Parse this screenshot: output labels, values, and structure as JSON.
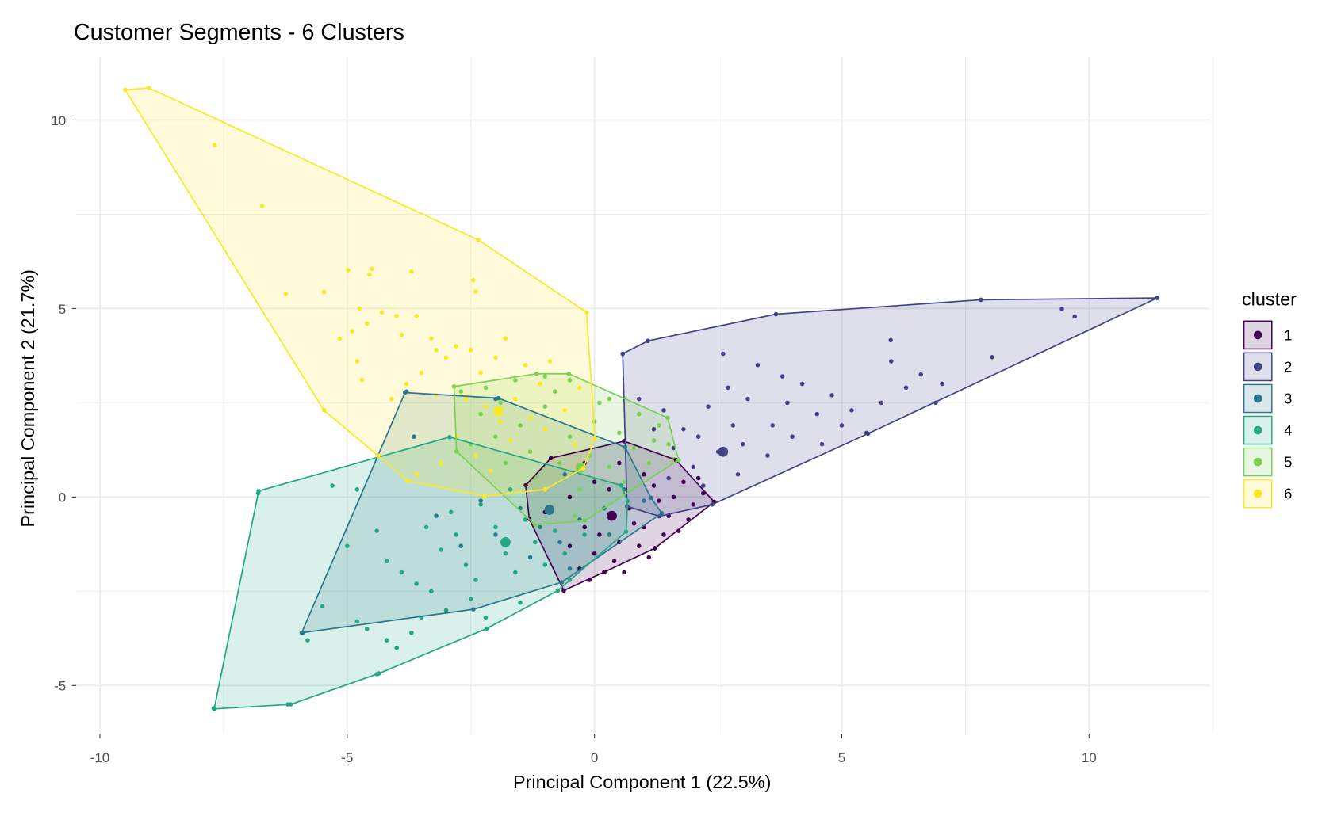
{
  "chart_data": {
    "type": "scatter",
    "title": "Customer Segments - 6 Clusters",
    "xlabel": "Principal Component 1 (22.5%)",
    "ylabel": "Principal Component 2 (21.7%)",
    "xlim": [
      -10.48,
      12.44
    ],
    "ylim": [
      -6.29,
      11.66
    ],
    "x_ticks": [
      -10,
      -5,
      0,
      5,
      10
    ],
    "y_ticks": [
      -5,
      0,
      5,
      10
    ],
    "x_tick_labels": [
      "-10",
      "-5",
      "0",
      "5",
      "10"
    ],
    "y_tick_labels": [
      "-5",
      "0",
      "5",
      "10"
    ],
    "grid": true,
    "legend": {
      "title": "cluster",
      "placement": "right"
    },
    "series": [
      {
        "name": "1",
        "color": "#440154",
        "hull": [
          [
            -0.88,
            1.03
          ],
          [
            0.6,
            1.48
          ],
          [
            1.65,
            0.98
          ],
          [
            2.42,
            -0.13
          ],
          [
            1.22,
            -1.36
          ],
          [
            0.2,
            -1.99
          ],
          [
            -0.62,
            -2.48
          ],
          [
            -1.32,
            -0.58
          ],
          [
            -1.39,
            0.31
          ]
        ],
        "centroid": [
          0.35,
          -0.5
        ],
        "points": [
          [
            -0.62,
            -2.48
          ],
          [
            0.2,
            -1.99
          ],
          [
            1.22,
            -1.36
          ],
          [
            2.42,
            -0.13
          ],
          [
            1.65,
            0.98
          ],
          [
            0.6,
            1.48
          ],
          [
            -0.88,
            1.03
          ],
          [
            0.0,
            -1.5
          ],
          [
            0.5,
            -1.2
          ],
          [
            1.0,
            -0.8
          ],
          [
            1.5,
            -0.5
          ],
          [
            2.0,
            -0.2
          ],
          [
            1.8,
            0.4
          ],
          [
            1.2,
            0.3
          ],
          [
            0.7,
            -0.3
          ],
          [
            0.3,
            0.2
          ],
          [
            -0.2,
            -0.8
          ],
          [
            -0.5,
            -1.3
          ],
          [
            -0.3,
            -1.9
          ],
          [
            0.4,
            -1.7
          ],
          [
            0.9,
            -1.3
          ],
          [
            1.4,
            -1.0
          ],
          [
            1.9,
            -0.6
          ],
          [
            2.2,
            0.1
          ],
          [
            1.6,
            0.0
          ],
          [
            1.0,
            0.6
          ],
          [
            0.5,
            0.9
          ],
          [
            0.0,
            0.4
          ],
          [
            -0.5,
            0.0
          ],
          [
            -1.0,
            -0.4
          ],
          [
            0.1,
            -1.0
          ],
          [
            0.8,
            -0.7
          ],
          [
            1.3,
            -0.1
          ],
          [
            -0.2,
            0.9
          ],
          [
            2.1,
            0.5
          ],
          [
            1.7,
            -0.9
          ],
          [
            1.1,
            -1.6
          ],
          [
            0.6,
            -2.0
          ],
          [
            -0.1,
            -2.2
          ]
        ]
      },
      {
        "name": "2",
        "color": "#414487",
        "hull": [
          [
            0.57,
            3.8
          ],
          [
            1.08,
            4.14
          ],
          [
            3.67,
            4.85
          ],
          [
            7.81,
            5.23
          ],
          [
            11.38,
            5.28
          ],
          [
            5.53,
            1.68
          ],
          [
            2.38,
            -0.2
          ],
          [
            1.31,
            -0.51
          ],
          [
            0.66,
            -0.25
          ]
        ],
        "centroid": [
          2.6,
          1.2
        ],
        "points": [
          [
            0.57,
            3.8
          ],
          [
            1.08,
            4.14
          ],
          [
            3.67,
            4.85
          ],
          [
            7.81,
            5.23
          ],
          [
            11.38,
            5.28
          ],
          [
            9.45,
            4.99
          ],
          [
            9.71,
            4.79
          ],
          [
            8.04,
            3.71
          ],
          [
            7.03,
            3.0
          ],
          [
            5.99,
            4.16
          ],
          [
            6.6,
            3.25
          ],
          [
            6.0,
            3.6
          ],
          [
            5.5,
            1.7
          ],
          [
            5.2,
            2.3
          ],
          [
            4.8,
            2.7
          ],
          [
            4.5,
            2.2
          ],
          [
            4.2,
            3.0
          ],
          [
            3.9,
            2.5
          ],
          [
            3.6,
            1.9
          ],
          [
            3.3,
            3.5
          ],
          [
            3.1,
            2.6
          ],
          [
            2.8,
            1.9
          ],
          [
            2.6,
            3.8
          ],
          [
            2.5,
            1.2
          ],
          [
            2.3,
            2.4
          ],
          [
            2.1,
            1.6
          ],
          [
            2.0,
            0.8
          ],
          [
            1.8,
            1.8
          ],
          [
            1.6,
            1.3
          ],
          [
            1.4,
            2.3
          ],
          [
            1.2,
            1.8
          ],
          [
            0.9,
            2.6
          ],
          [
            3.0,
            1.4
          ],
          [
            3.5,
            1.1
          ],
          [
            4.0,
            1.6
          ],
          [
            4.6,
            1.4
          ],
          [
            5.0,
            1.9
          ],
          [
            5.8,
            2.5
          ],
          [
            6.3,
            2.9
          ],
          [
            6.9,
            2.5
          ],
          [
            3.8,
            3.2
          ],
          [
            2.7,
            2.9
          ],
          [
            2.2,
            0.3
          ],
          [
            1.5,
            0.5
          ],
          [
            2.9,
            0.6
          ]
        ]
      },
      {
        "name": "3",
        "color": "#2A788E",
        "hull": [
          [
            -3.83,
            2.77
          ],
          [
            -1.94,
            2.62
          ],
          [
            0.62,
            1.32
          ],
          [
            1.14,
            -0.02
          ],
          [
            1.36,
            -0.43
          ],
          [
            -0.66,
            -2.26
          ],
          [
            -2.45,
            -2.98
          ],
          [
            -5.92,
            -3.6
          ]
        ],
        "centroid": [
          -0.91,
          -0.34
        ],
        "points": [
          [
            -3.8,
            2.8
          ],
          [
            -3.65,
            1.6
          ],
          [
            -2.0,
            2.6
          ],
          [
            -5.9,
            -3.6
          ],
          [
            -3.2,
            -0.5
          ],
          [
            -2.7,
            -1.3
          ],
          [
            -2.0,
            -1.0
          ],
          [
            -1.5,
            -0.3
          ],
          [
            -1.1,
            -0.8
          ],
          [
            -0.7,
            -1.2
          ],
          [
            -0.3,
            -0.6
          ],
          [
            0.2,
            -0.3
          ],
          [
            0.6,
            0.2
          ],
          [
            1.0,
            -0.1
          ],
          [
            -0.9,
            -0.35
          ],
          [
            -1.3,
            -1.6
          ],
          [
            -0.5,
            -1.9
          ],
          [
            0.3,
            -1.0
          ],
          [
            -2.3,
            -0.1
          ],
          [
            -0.6,
            0.6
          ]
        ]
      },
      {
        "name": "4",
        "color": "#22A884",
        "hull": [
          [
            -6.79,
            0.16
          ],
          [
            -2.93,
            1.59
          ],
          [
            0.54,
            0.31
          ],
          [
            0.67,
            -0.11
          ],
          [
            0.64,
            -0.92
          ],
          [
            -0.74,
            -2.48
          ],
          [
            -2.18,
            -3.49
          ],
          [
            -4.36,
            -4.68
          ],
          [
            -6.14,
            -5.5
          ],
          [
            -7.69,
            -5.62
          ]
        ],
        "centroid": [
          -1.8,
          -1.2
        ],
        "points": [
          [
            -6.8,
            0.1
          ],
          [
            -7.7,
            -5.6
          ],
          [
            -6.2,
            -5.5
          ],
          [
            -5.3,
            0.3
          ],
          [
            -4.8,
            0.2
          ],
          [
            -5.0,
            -1.3
          ],
          [
            -5.5,
            -2.9
          ],
          [
            -5.8,
            -3.8
          ],
          [
            -4.8,
            -3.3
          ],
          [
            -4.6,
            -3.5
          ],
          [
            -4.2,
            -3.8
          ],
          [
            -4.0,
            -4.0
          ],
          [
            -3.7,
            -3.6
          ],
          [
            -4.2,
            -1.7
          ],
          [
            -3.9,
            -2.0
          ],
          [
            -3.6,
            -2.3
          ],
          [
            -3.3,
            -2.5
          ],
          [
            -3.1,
            -1.4
          ],
          [
            -2.8,
            -1.0
          ],
          [
            -2.6,
            -1.8
          ],
          [
            -2.4,
            -2.2
          ],
          [
            -2.2,
            -3.2
          ],
          [
            -2.0,
            -0.8
          ],
          [
            -1.8,
            -1.5
          ],
          [
            -1.6,
            -2.0
          ],
          [
            -1.4,
            -0.6
          ],
          [
            -1.2,
            -1.2
          ],
          [
            -1.0,
            -1.8
          ],
          [
            -0.8,
            -0.9
          ],
          [
            -0.6,
            -1.5
          ],
          [
            -2.9,
            -0.4
          ],
          [
            -3.4,
            -0.8
          ],
          [
            -4.4,
            -0.9
          ],
          [
            -2.3,
            -0.2
          ],
          [
            -1.7,
            0.2
          ],
          [
            -0.5,
            -2.2
          ],
          [
            -0.2,
            -1.0
          ],
          [
            -3.0,
            -3.0
          ],
          [
            -3.5,
            -3.2
          ],
          [
            -2.5,
            -2.7
          ],
          [
            -1.5,
            -2.8
          ],
          [
            -4.4,
            -4.7
          ]
        ]
      },
      {
        "name": "5",
        "color": "#7AD151",
        "hull": [
          [
            -2.84,
            2.93
          ],
          [
            -1.17,
            3.27
          ],
          [
            -0.52,
            3.27
          ],
          [
            1.48,
            2.1
          ],
          [
            1.7,
            0.98
          ],
          [
            -0.2,
            -0.63
          ],
          [
            -1.2,
            -0.74
          ],
          [
            -2.79,
            1.21
          ]
        ],
        "centroid": [
          -0.28,
          0.78
        ],
        "points": [
          [
            -2.7,
            2.8
          ],
          [
            -2.2,
            2.9
          ],
          [
            -1.6,
            3.1
          ],
          [
            -1.0,
            3.2
          ],
          [
            -0.5,
            3.1
          ],
          [
            0.3,
            2.6
          ],
          [
            0.9,
            2.2
          ],
          [
            1.3,
            1.9
          ],
          [
            1.5,
            1.4
          ],
          [
            1.6,
            1.0
          ],
          [
            1.1,
            0.9
          ],
          [
            0.5,
            1.7
          ],
          [
            0.0,
            2.0
          ],
          [
            -0.5,
            1.6
          ],
          [
            -1.0,
            2.4
          ],
          [
            -1.5,
            1.9
          ],
          [
            -2.0,
            1.6
          ],
          [
            -2.5,
            1.4
          ],
          [
            -1.8,
            0.9
          ],
          [
            -1.2,
            0.5
          ],
          [
            -0.7,
            0.9
          ],
          [
            -0.3,
            0.2
          ],
          [
            0.3,
            0.8
          ],
          [
            0.8,
            1.3
          ],
          [
            -0.9,
            -0.3
          ],
          [
            -0.4,
            -0.5
          ],
          [
            -2.3,
            2.2
          ],
          [
            -1.3,
            1.2
          ],
          [
            -0.1,
            1.1
          ],
          [
            0.6,
            0.4
          ],
          [
            1.2,
            1.5
          ],
          [
            -0.8,
            2.8
          ],
          [
            -1.9,
            2.5
          ],
          [
            0.1,
            2.5
          ]
        ]
      },
      {
        "name": "6",
        "color": "#FDE725",
        "hull": [
          [
            -9.49,
            10.8
          ],
          [
            -9.01,
            10.85
          ],
          [
            -2.35,
            6.82
          ],
          [
            -0.16,
            4.9
          ],
          [
            0.01,
            1.54
          ],
          [
            -0.23,
            0.76
          ],
          [
            -1.0,
            0.2
          ],
          [
            -2.23,
            0.02
          ],
          [
            -3.78,
            0.43
          ],
          [
            -4.38,
            1.1
          ],
          [
            -5.47,
            2.3
          ]
        ],
        "centroid": [
          -1.94,
          2.28
        ],
        "points": [
          [
            -7.68,
            9.33
          ],
          [
            -6.72,
            7.72
          ],
          [
            -6.24,
            5.39
          ],
          [
            -5.47,
            5.44
          ],
          [
            -4.98,
            6.02
          ],
          [
            -4.55,
            5.9
          ],
          [
            -4.5,
            6.05
          ],
          [
            -3.7,
            5.98
          ],
          [
            -2.4,
            5.45
          ],
          [
            -2.45,
            5.75
          ],
          [
            -5.15,
            4.2
          ],
          [
            -4.9,
            4.4
          ],
          [
            -4.75,
            5.0
          ],
          [
            -4.6,
            4.6
          ],
          [
            -4.8,
            3.6
          ],
          [
            -4.7,
            3.1
          ],
          [
            -4.3,
            4.9
          ],
          [
            -4.0,
            4.8
          ],
          [
            -3.9,
            4.3
          ],
          [
            -3.6,
            4.8
          ],
          [
            -3.3,
            4.2
          ],
          [
            -3.2,
            3.9
          ],
          [
            -3.0,
            3.7
          ],
          [
            -2.8,
            4.0
          ],
          [
            -2.5,
            3.9
          ],
          [
            -2.3,
            3.3
          ],
          [
            -2.0,
            3.7
          ],
          [
            -1.8,
            4.2
          ],
          [
            -1.4,
            3.5
          ],
          [
            -1.1,
            3.0
          ],
          [
            -0.9,
            3.6
          ],
          [
            -3.5,
            3.3
          ],
          [
            -3.8,
            3.0
          ],
          [
            -4.1,
            2.6
          ],
          [
            -3.2,
            2.7
          ],
          [
            -2.6,
            2.6
          ],
          [
            -2.2,
            2.4
          ],
          [
            -1.9,
            2.0
          ],
          [
            -1.6,
            2.6
          ],
          [
            -1.3,
            2.1
          ],
          [
            -1.0,
            1.8
          ],
          [
            -0.6,
            2.3
          ],
          [
            -0.4,
            1.4
          ],
          [
            -2.8,
            1.6
          ],
          [
            -2.4,
            1.1
          ],
          [
            -3.1,
            0.9
          ],
          [
            -3.6,
            0.6
          ],
          [
            -0.3,
            2.9
          ],
          [
            -1.7,
            1.5
          ],
          [
            -2.1,
            0.7
          ]
        ]
      }
    ]
  }
}
